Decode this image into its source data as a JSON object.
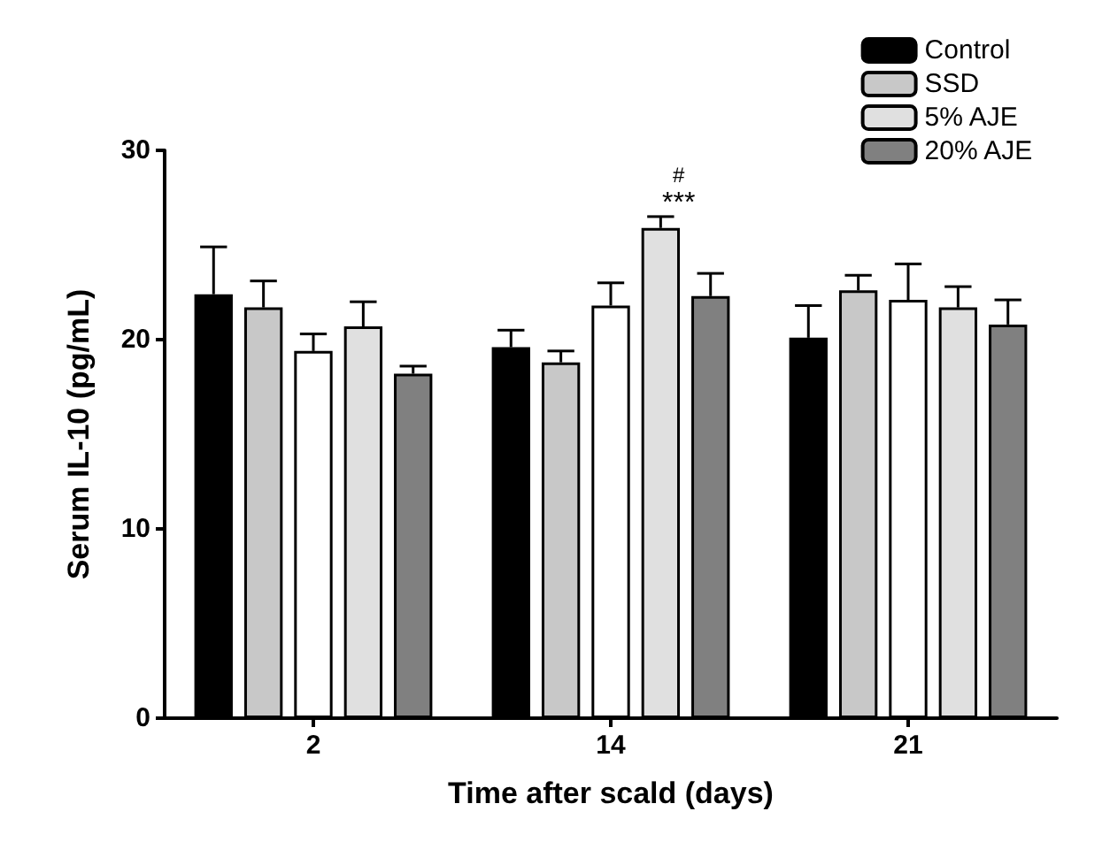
{
  "chart_data": {
    "type": "bar",
    "xlabel": "Time after scald (days)",
    "ylabel": "Serum IL-10 (pg/mL)",
    "categories": [
      "2",
      "14",
      "21"
    ],
    "ylim": [
      0,
      30
    ],
    "yticks": [
      0,
      10,
      20,
      30
    ],
    "grid": false,
    "legend": "top right",
    "series": [
      {
        "name": "Control",
        "color": "#000000",
        "values": [
          22.4,
          19.6,
          20.1
        ],
        "errors": [
          [
            22.4,
            24.9
          ],
          [
            19.6,
            20.5
          ],
          [
            20.1,
            21.8
          ]
        ]
      },
      {
        "name": "SSD",
        "color": "#c8c8c8",
        "values": [
          21.7,
          18.8,
          22.6
        ],
        "errors": [
          [
            21.7,
            23.1
          ],
          [
            18.8,
            19.4
          ],
          [
            22.6,
            23.4
          ]
        ]
      },
      {
        "color": "#ffffff",
        "values": [
          19.4,
          21.8,
          22.1
        ],
        "errors": [
          [
            19.4,
            20.3
          ],
          [
            21.8,
            23.0
          ],
          [
            22.1,
            24.0
          ]
        ]
      },
      {
        "name": "5% AJE",
        "color": "#e0e0e0",
        "values": [
          20.7,
          25.9,
          21.7
        ],
        "errors": [
          [
            20.7,
            22.0
          ],
          [
            25.9,
            26.5
          ],
          [
            21.7,
            22.8
          ]
        ]
      },
      {
        "name": "20% AJE",
        "color": "#808080",
        "values": [
          18.2,
          22.3,
          20.8
        ],
        "errors": [
          [
            18.2,
            18.6
          ],
          [
            22.3,
            23.5
          ],
          [
            20.8,
            22.1
          ]
        ]
      }
    ],
    "annotations": [
      "***",
      "#"
    ]
  }
}
